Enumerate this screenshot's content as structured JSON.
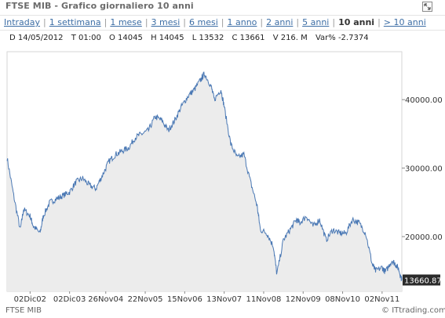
{
  "header": {
    "title": "FTSE MIB - Grafico giornaliero 10 anni",
    "expand_icon": "expand-icon"
  },
  "periods": [
    {
      "label": "Intraday",
      "active": false
    },
    {
      "label": "1 settimana",
      "active": false
    },
    {
      "label": "1 mese",
      "active": false
    },
    {
      "label": "3 mesi",
      "active": false
    },
    {
      "label": "6 mesi",
      "active": false
    },
    {
      "label": "1 anno",
      "active": false
    },
    {
      "label": "2 anni",
      "active": false
    },
    {
      "label": "5 anni",
      "active": false
    },
    {
      "label": "10 anni",
      "active": true
    },
    {
      "label": "> 10 anni",
      "active": false
    }
  ],
  "ohlc": {
    "date": "D 14/05/2012",
    "time": "T 01:00",
    "open": "O 14045",
    "high": "H 14045",
    "low": "L 13532",
    "close": "C 13661",
    "volume": "V 216. M",
    "change": "Var% -2.7374"
  },
  "footer": {
    "source": "FTSE MIB",
    "credit": "ITtrading.com"
  },
  "colors": {
    "line": "#4a78b4",
    "area": "#ececec",
    "label_bg": "#2b2b2b"
  },
  "chart_data": {
    "type": "area",
    "x_tick_labels": [
      "02Dic02",
      "02Dic03",
      "26Nov04",
      "22Nov05",
      "15Nov06",
      "13Nov07",
      "11Nov08",
      "12Nov09",
      "08Nov10",
      "02Nov11"
    ],
    "y_tick_labels": [
      "20000.00",
      "30000.00",
      "40000.00"
    ],
    "y_ticks": [
      20000,
      30000,
      40000
    ],
    "ylim": [
      12000,
      47000
    ],
    "last_value": 13661,
    "last_value_label": "13660.87",
    "grid": false,
    "series": [
      {
        "dates": [
          "2002-05",
          "2002-07",
          "2002-09",
          "2002-10",
          "2002-12",
          "2003-01",
          "2003-03",
          "2003-04",
          "2003-06",
          "2003-08",
          "2003-10",
          "2003-12",
          "2004-02",
          "2004-04",
          "2004-06",
          "2004-08",
          "2004-10",
          "2004-12",
          "2005-02",
          "2005-04",
          "2005-06",
          "2005-08",
          "2005-10",
          "2005-12",
          "2006-02",
          "2006-04",
          "2006-06",
          "2006-08",
          "2006-10",
          "2006-12",
          "2007-02",
          "2007-04",
          "2007-05",
          "2007-07",
          "2007-08",
          "2007-10",
          "2007-11",
          "2008-01",
          "2008-03",
          "2008-05",
          "2008-07",
          "2008-09",
          "2008-10",
          "2008-12",
          "2009-02",
          "2009-03",
          "2009-05",
          "2009-07",
          "2009-09",
          "2009-10",
          "2009-12",
          "2010-02",
          "2010-04",
          "2010-06",
          "2010-08",
          "2010-10",
          "2010-12",
          "2011-02",
          "2011-04",
          "2011-06",
          "2011-08",
          "2011-09",
          "2011-11",
          "2011-12",
          "2012-02",
          "2012-03",
          "2012-04",
          "2012-05"
        ],
        "values": [
          31500,
          26000,
          21000,
          24000,
          23000,
          21500,
          20500,
          23000,
          25000,
          25500,
          26000,
          26500,
          28000,
          28500,
          27500,
          27000,
          29000,
          31000,
          32000,
          32500,
          33000,
          34500,
          35000,
          35500,
          37500,
          37000,
          35500,
          37000,
          39000,
          40500,
          41500,
          43000,
          43800,
          42000,
          40000,
          41500,
          39000,
          33500,
          31500,
          32000,
          28000,
          24500,
          21000,
          20500,
          18500,
          14500,
          19500,
          21000,
          22500,
          22000,
          23000,
          21500,
          22500,
          19500,
          21000,
          20500,
          20500,
          22500,
          22000,
          20500,
          16000,
          15000,
          15500,
          14800,
          16500,
          16000,
          15300,
          13661
        ]
      }
    ]
  }
}
